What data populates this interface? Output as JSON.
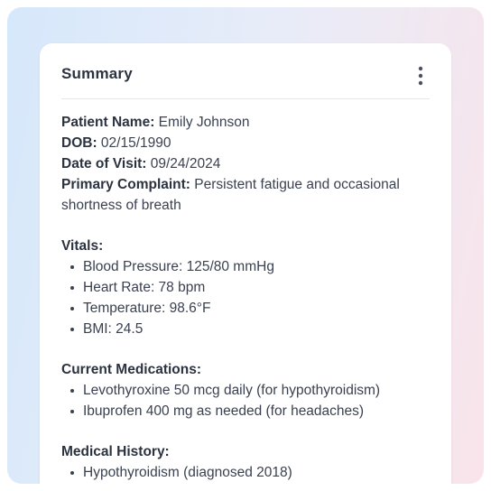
{
  "card": {
    "title": "Summary",
    "menu_icon": "more-vertical-icon"
  },
  "patient": {
    "name_label": "Patient Name:",
    "name_value": " Emily Johnson",
    "dob_label": "DOB:",
    "dob_value": " 02/15/1990",
    "visit_label": "Date of Visit:",
    "visit_value": " 09/24/2024",
    "complaint_label": "Primary Complaint:",
    "complaint_value": " Persistent fatigue and occasional shortness of breath"
  },
  "vitals": {
    "heading": "Vitals:",
    "items": [
      "Blood Pressure: 125/80 mmHg",
      "Heart Rate: 78 bpm",
      "Temperature: 98.6°F",
      "BMI: 24.5"
    ]
  },
  "medications": {
    "heading": "Current Medications:",
    "items": [
      "Levothyroxine 50 mcg daily (for hypothyroidism)",
      "Ibuprofen 400 mg as needed (for headaches)"
    ]
  },
  "history": {
    "heading": "Medical History:",
    "items": [
      "Hypothyroidism (diagnosed 2018)"
    ]
  }
}
